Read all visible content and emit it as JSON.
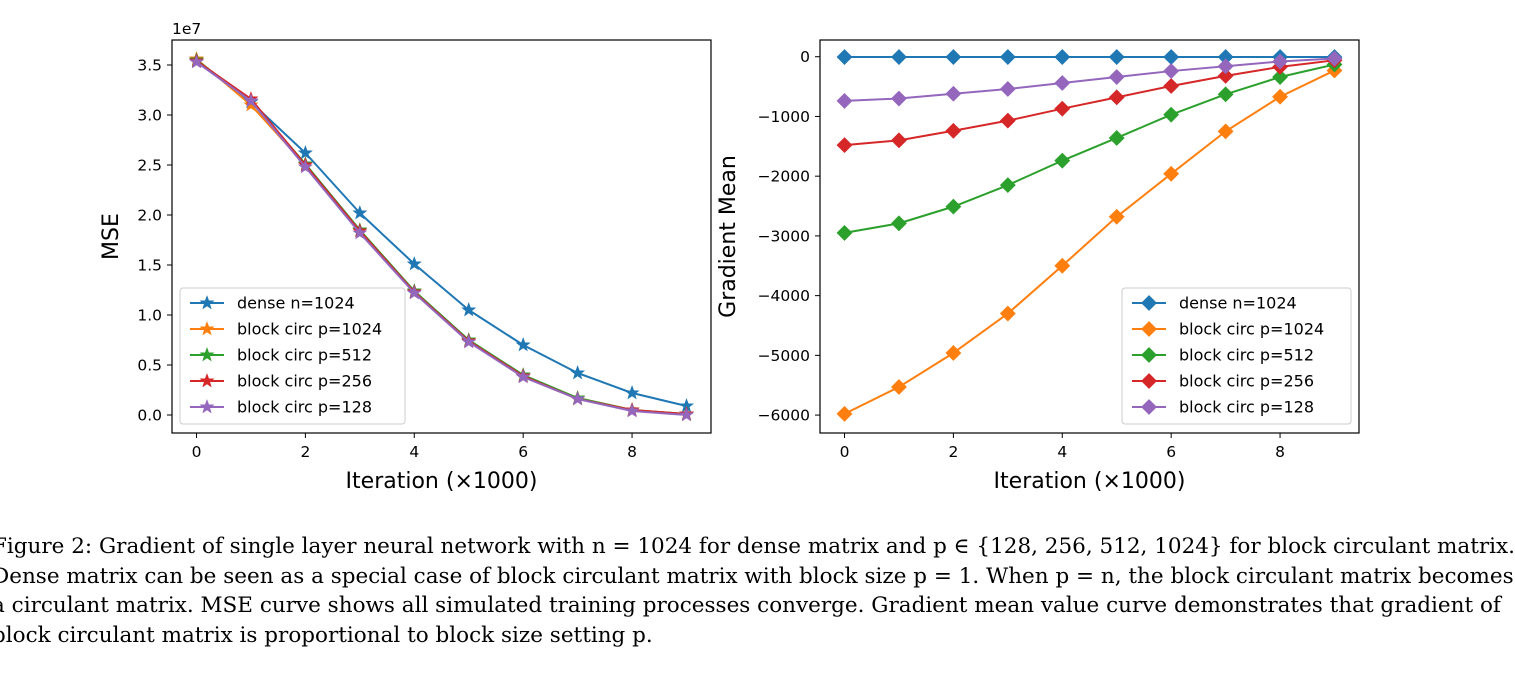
{
  "colors": [
    "#1f77b4",
    "#ff7f0e",
    "#2ca02c",
    "#d62728",
    "#9467bd"
  ],
  "chart_data": [
    {
      "type": "line",
      "marker": "star",
      "xlabel": "Iteration (×1000)",
      "ylabel": "MSE",
      "offset_label": "1e7",
      "x": [
        0,
        1,
        2,
        3,
        4,
        5,
        6,
        7,
        8,
        9
      ],
      "xlim": [
        -0.45,
        9.45
      ],
      "ylim": [
        -0.18,
        3.75
      ],
      "xticks": [
        0,
        2,
        4,
        6,
        8
      ],
      "yticks": [
        0.0,
        0.5,
        1.0,
        1.5,
        2.0,
        2.5,
        3.0,
        3.5
      ],
      "ytick_labels": [
        "0.0",
        "0.5",
        "1.0",
        "1.5",
        "2.0",
        "2.5",
        "3.0",
        "3.5"
      ],
      "legend_position": "lower-left",
      "series": [
        {
          "name": "dense n=1024",
          "values": [
            3.54,
            3.13,
            2.62,
            2.02,
            1.51,
            1.05,
            0.7,
            0.42,
            0.22,
            0.09
          ]
        },
        {
          "name": "block circ p=1024",
          "values": [
            3.56,
            3.1,
            2.5,
            1.84,
            1.23,
            0.74,
            0.39,
            0.17,
            0.05,
            0.01
          ]
        },
        {
          "name": "block circ p=512",
          "values": [
            3.55,
            3.14,
            2.51,
            1.85,
            1.24,
            0.75,
            0.4,
            0.17,
            0.05,
            0.01
          ]
        },
        {
          "name": "block circ p=256",
          "values": [
            3.54,
            3.16,
            2.5,
            1.84,
            1.23,
            0.74,
            0.39,
            0.16,
            0.05,
            0.01
          ]
        },
        {
          "name": "block circ p=128",
          "values": [
            3.53,
            3.14,
            2.48,
            1.82,
            1.22,
            0.73,
            0.38,
            0.16,
            0.04,
            0.0
          ]
        }
      ]
    },
    {
      "type": "line",
      "marker": "diamond",
      "xlabel": "Iteration (×1000)",
      "ylabel": "Gradient Mean",
      "x": [
        0,
        1,
        2,
        3,
        4,
        5,
        6,
        7,
        8,
        9
      ],
      "xlim": [
        -0.45,
        9.45
      ],
      "ylim": [
        -6300,
        280
      ],
      "xticks": [
        0,
        2,
        4,
        6,
        8
      ],
      "yticks": [
        0,
        -1000,
        -2000,
        -3000,
        -4000,
        -5000,
        -6000
      ],
      "ytick_labels": [
        "0",
        "−1000",
        "−2000",
        "−3000",
        "−4000",
        "−5000",
        "−6000"
      ],
      "legend_position": "lower-right",
      "series": [
        {
          "name": "dense n=1024",
          "values": [
            -5,
            -5,
            -5,
            -5,
            -5,
            -5,
            -5,
            -5,
            -5,
            -5
          ]
        },
        {
          "name": "block circ p=1024",
          "values": [
            -5980,
            -5530,
            -4960,
            -4300,
            -3500,
            -2680,
            -1960,
            -1250,
            -670,
            -230
          ]
        },
        {
          "name": "block circ p=512",
          "values": [
            -2950,
            -2790,
            -2510,
            -2150,
            -1740,
            -1360,
            -970,
            -630,
            -340,
            -130
          ]
        },
        {
          "name": "block circ p=256",
          "values": [
            -1480,
            -1400,
            -1240,
            -1070,
            -870,
            -680,
            -490,
            -320,
            -170,
            -60
          ]
        },
        {
          "name": "block circ p=128",
          "values": [
            -740,
            -700,
            -620,
            -540,
            -440,
            -340,
            -240,
            -160,
            -80,
            -30
          ]
        }
      ]
    }
  ],
  "caption": {
    "lines": [
      "Figure 2: Gradient of single layer neural network with n = 1024 for dense matrix and p ∈ {128, 256, 512, 1024} for block circulant matrix.",
      "Dense matrix can be seen as a special case of block circulant matrix with block size p = 1. When p = n, the block circulant matrix becomes",
      "a circulant matrix. MSE curve shows all simulated training processes converge. Gradient mean value curve demonstrates that gradient of",
      "block circulant matrix is proportional to block size setting p."
    ]
  }
}
